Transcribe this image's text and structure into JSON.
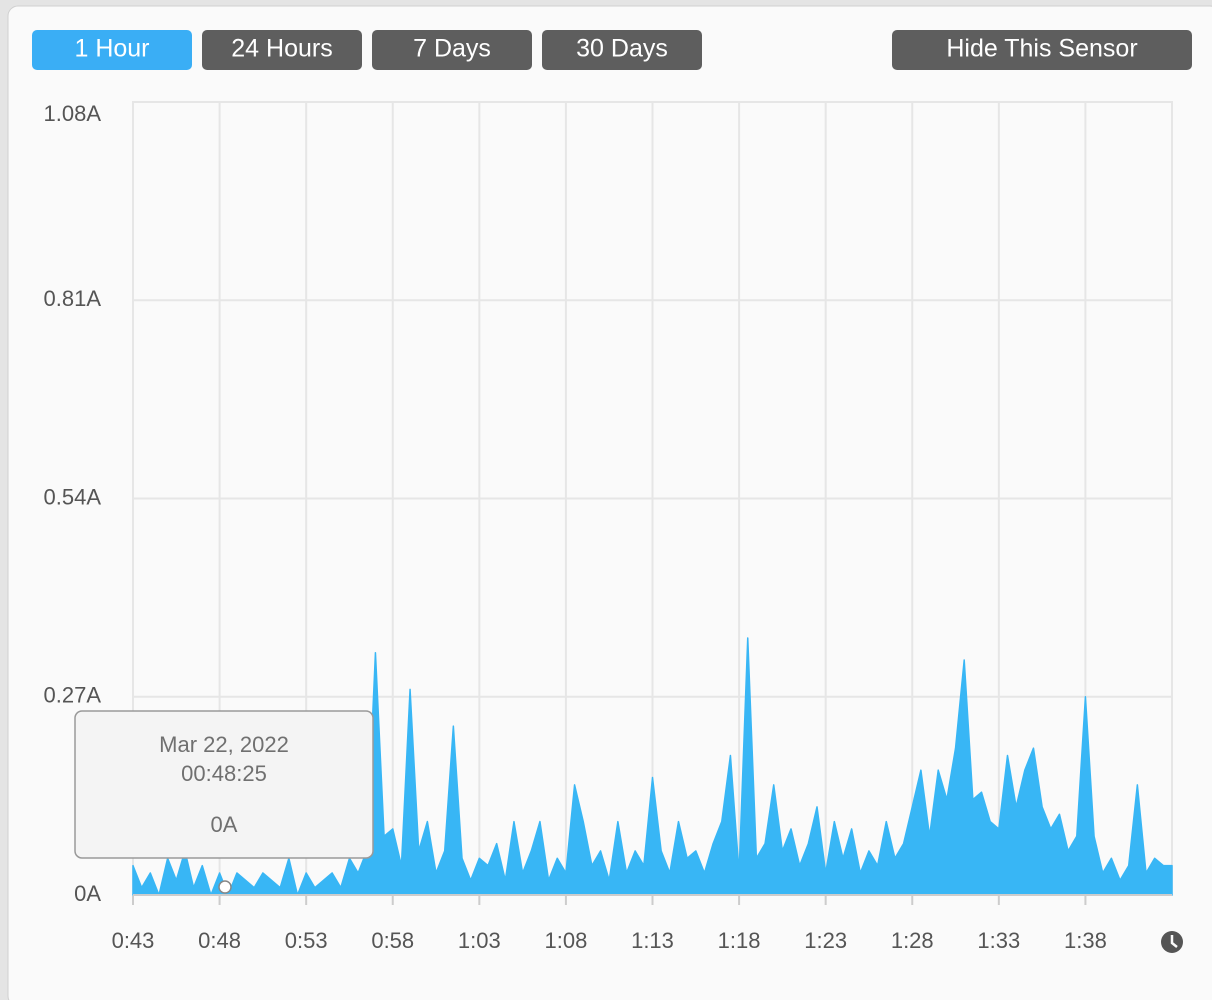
{
  "buttons": [
    "1 Hour",
    "24 Hours",
    "7 Days",
    "30 Days"
  ],
  "hide_button": "Hide This Sensor",
  "chart_data": {
    "type": "area",
    "color": "#38b6f5",
    "grid": true,
    "xlim": [
      43,
      103
    ],
    "ylim": [
      0,
      1.08
    ],
    "xticks": [
      {
        "value": 43,
        "label": "0:43"
      },
      {
        "value": 48,
        "label": "0:48"
      },
      {
        "value": 53,
        "label": "0:53"
      },
      {
        "value": 58,
        "label": "0:58"
      },
      {
        "value": 63,
        "label": "1:03"
      },
      {
        "value": 68,
        "label": "1:08"
      },
      {
        "value": 73,
        "label": "1:13"
      },
      {
        "value": 78,
        "label": "1:18"
      },
      {
        "value": 83,
        "label": "1:23"
      },
      {
        "value": 88,
        "label": "1:28"
      },
      {
        "value": 93,
        "label": "1:33"
      },
      {
        "value": 98,
        "label": "1:38"
      }
    ],
    "yticks": [
      {
        "value": 0,
        "label": "0A"
      },
      {
        "value": 0.27,
        "label": "0.27A"
      },
      {
        "value": 0.54,
        "label": "0.54A"
      },
      {
        "value": 0.81,
        "label": "0.81A"
      },
      {
        "value": 1.08,
        "label": "1.08A"
      }
    ],
    "x": [
      43,
      43.5,
      44,
      44.5,
      45,
      45.5,
      46,
      46.5,
      47,
      47.5,
      48,
      48.5,
      49,
      49.5,
      50,
      50.5,
      51,
      51.5,
      52,
      52.5,
      53,
      53.5,
      54,
      54.5,
      55,
      55.5,
      56,
      56.5,
      57,
      57.5,
      58,
      58.5,
      59,
      59.5,
      60,
      60.5,
      61,
      61.5,
      62,
      62.5,
      63,
      63.5,
      64,
      64.5,
      65,
      65.5,
      66,
      66.5,
      67,
      67.5,
      68,
      68.5,
      69,
      69.5,
      70,
      70.5,
      71,
      71.5,
      72,
      72.5,
      73,
      73.5,
      74,
      74.5,
      75,
      75.5,
      76,
      76.5,
      77,
      77.5,
      78,
      78.5,
      79,
      79.5,
      80,
      80.5,
      81,
      81.5,
      82,
      82.5,
      83,
      83.5,
      84,
      84.5,
      85,
      85.5,
      86,
      86.5,
      87,
      87.5,
      88,
      88.5,
      89,
      89.5,
      90,
      90.5,
      91,
      91.5,
      92,
      92.5,
      93,
      93.5,
      94,
      94.5,
      95,
      95.5,
      96,
      96.5,
      97,
      97.5,
      98,
      98.5,
      99,
      99.5,
      100,
      100.5,
      101,
      101.5,
      102,
      102.5,
      103
    ],
    "values": [
      0.04,
      0.01,
      0.03,
      0,
      0.05,
      0.02,
      0.06,
      0.01,
      0.04,
      0,
      0.03,
      0,
      0.03,
      0.02,
      0.01,
      0.03,
      0.02,
      0.01,
      0.05,
      0,
      0.03,
      0.01,
      0.02,
      0.03,
      0.01,
      0.05,
      0.03,
      0.06,
      0.33,
      0.08,
      0.09,
      0.04,
      0.28,
      0.06,
      0.1,
      0.03,
      0.06,
      0.23,
      0.05,
      0.02,
      0.05,
      0.04,
      0.07,
      0.02,
      0.1,
      0.03,
      0.06,
      0.1,
      0.02,
      0.05,
      0.03,
      0.15,
      0.1,
      0.04,
      0.06,
      0.02,
      0.1,
      0.03,
      0.06,
      0.04,
      0.16,
      0.06,
      0.03,
      0.1,
      0.05,
      0.06,
      0.03,
      0.07,
      0.1,
      0.19,
      0.03,
      0.35,
      0.05,
      0.07,
      0.15,
      0.06,
      0.09,
      0.04,
      0.07,
      0.12,
      0.03,
      0.1,
      0.05,
      0.09,
      0.03,
      0.06,
      0.04,
      0.1,
      0.05,
      0.07,
      0.12,
      0.17,
      0.08,
      0.17,
      0.13,
      0.2,
      0.32,
      0.13,
      0.14,
      0.1,
      0.09,
      0.19,
      0.12,
      0.17,
      0.2,
      0.12,
      0.09,
      0.11,
      0.06,
      0.08,
      0.27,
      0.08,
      0.03,
      0.05,
      0.02,
      0.04,
      0.15,
      0.03,
      0.05,
      0.04,
      0.04
    ]
  },
  "tooltip": {
    "date": "Mar 22, 2022",
    "time": "00:48:25",
    "value": "0A"
  }
}
